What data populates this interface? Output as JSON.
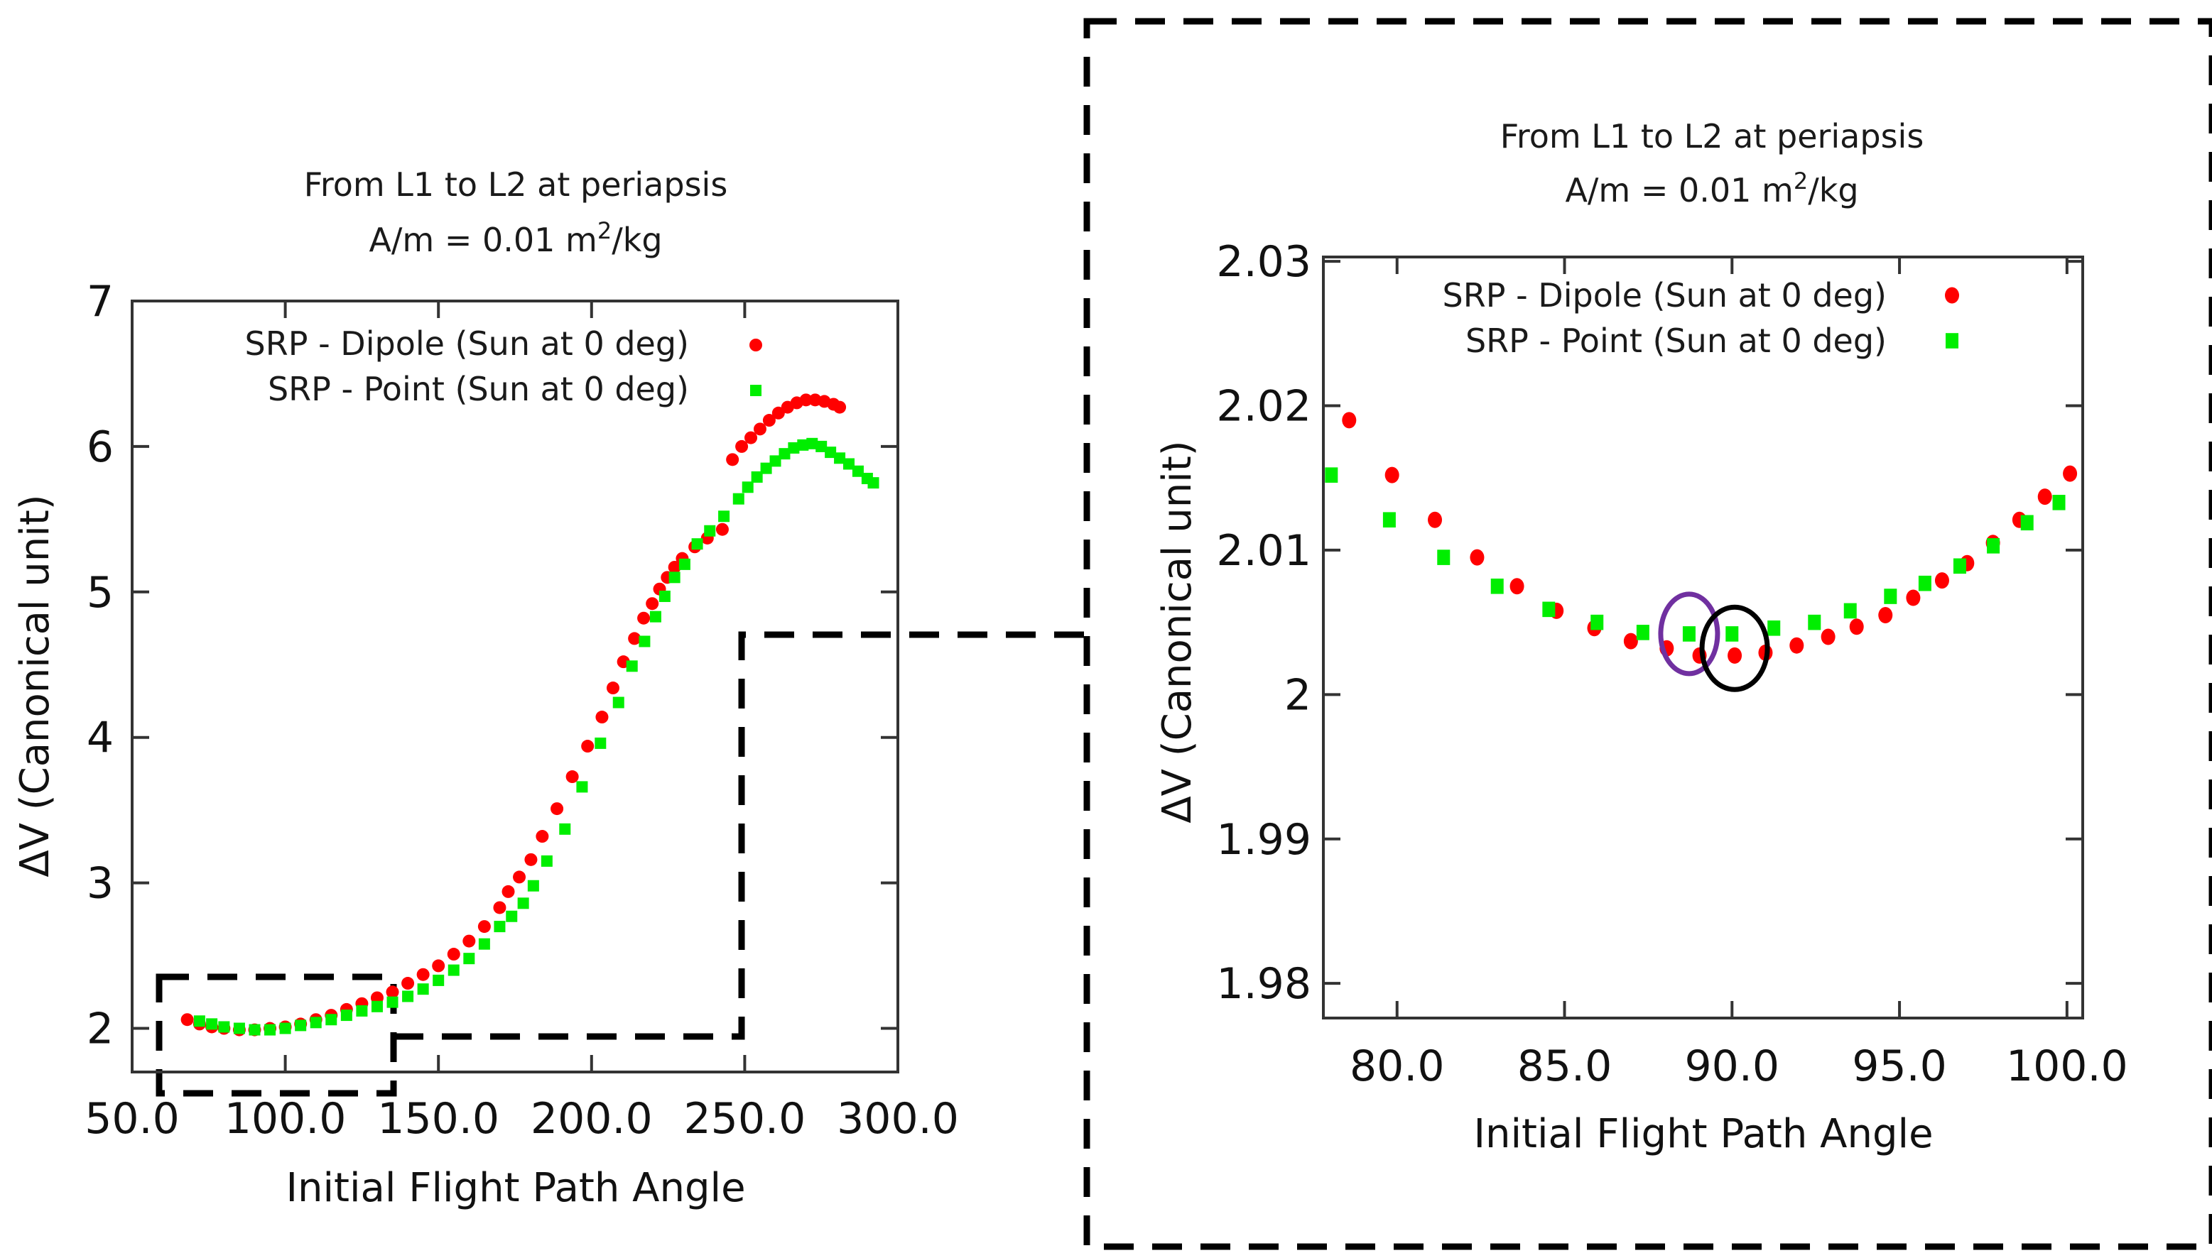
{
  "colors": {
    "dipole": "#ff0000",
    "point": "#00ee00",
    "highlight_purple": "#7030a0",
    "highlight_black": "#000000"
  },
  "chart_data": [
    {
      "type": "scatter",
      "title_line1": "From L1 to L2 at periapsis",
      "title_line2_prefix": "A/m = 0.01 m",
      "title_line2_sup": "2",
      "title_line2_suffix": "/kg",
      "xlabel": "Initial Flight Path Angle",
      "ylabel": "ΔV (Canonical unit)",
      "xlim": [
        50,
        300
      ],
      "ylim": [
        1.7,
        7.0
      ],
      "xticks": [
        50,
        100,
        150,
        200,
        250,
        300
      ],
      "xtick_labels": [
        "50.0",
        "100.0",
        "150.0",
        "200.0",
        "250.0",
        "300.0"
      ],
      "yticks": [
        2,
        3,
        4,
        5,
        6,
        7
      ],
      "ytick_labels": [
        "2",
        "3",
        "4",
        "5",
        "6",
        "7"
      ],
      "legend_position": "top-right",
      "series": [
        {
          "name": "SRP - Dipole (Sun at 0 deg)",
          "marker": "circle",
          "x": [
            68,
            72,
            76,
            80,
            85,
            90,
            95,
            100,
            105,
            110,
            115,
            120,
            125,
            130,
            135,
            140,
            145,
            150,
            155,
            160,
            165,
            170,
            172.8,
            176.4,
            180.2,
            183.9,
            188.7,
            193.7,
            198.7,
            203.4,
            207.0,
            210.4,
            214.0,
            217.0,
            219.8,
            222.2,
            224.7,
            227.1,
            229.6,
            233.7,
            237.8,
            242.7,
            246,
            249,
            252,
            255,
            258,
            261,
            264,
            267,
            270,
            273,
            276,
            279,
            281
          ],
          "y": [
            2.06,
            2.03,
            2.01,
            2.0,
            1.99,
            1.99,
            2.0,
            2.01,
            2.03,
            2.06,
            2.09,
            2.13,
            2.17,
            2.21,
            2.25,
            2.31,
            2.37,
            2.43,
            2.51,
            2.6,
            2.7,
            2.83,
            2.94,
            3.04,
            3.16,
            3.32,
            3.51,
            3.73,
            3.94,
            4.14,
            4.34,
            4.52,
            4.68,
            4.82,
            4.92,
            5.02,
            5.1,
            5.17,
            5.23,
            5.31,
            5.37,
            5.43,
            5.91,
            6.0,
            6.06,
            6.12,
            6.18,
            6.23,
            6.27,
            6.3,
            6.32,
            6.32,
            6.31,
            6.29,
            6.27
          ]
        },
        {
          "name": "SRP - Point (Sun at 0 deg)",
          "marker": "square",
          "x": [
            72,
            76,
            80,
            85,
            90,
            95,
            100,
            105,
            110,
            115,
            120,
            125,
            130,
            135,
            140,
            145,
            150,
            155,
            160,
            165,
            170,
            173.9,
            177.7,
            181.0,
            185.4,
            191.3,
            196.9,
            202.9,
            208.8,
            213.2,
            217.3,
            220.9,
            223.9,
            227.1,
            230.4,
            234.5,
            238.6,
            243.2,
            248,
            251,
            254,
            257,
            260,
            263,
            266,
            269,
            272,
            275,
            278,
            281,
            284,
            287,
            290,
            292
          ],
          "y": [
            2.05,
            2.03,
            2.01,
            2.0,
            1.99,
            1.99,
            2.0,
            2.02,
            2.04,
            2.06,
            2.09,
            2.12,
            2.15,
            2.18,
            2.22,
            2.27,
            2.33,
            2.4,
            2.48,
            2.58,
            2.7,
            2.77,
            2.86,
            2.98,
            3.15,
            3.37,
            3.66,
            3.96,
            4.24,
            4.49,
            4.66,
            4.83,
            4.97,
            5.1,
            5.19,
            5.33,
            5.42,
            5.52,
            5.64,
            5.72,
            5.79,
            5.85,
            5.9,
            5.95,
            5.99,
            6.01,
            6.02,
            6.0,
            5.96,
            5.92,
            5.88,
            5.83,
            5.78,
            5.75
          ]
        }
      ]
    },
    {
      "type": "scatter",
      "title_line1": "From L1 to L2 at periapsis",
      "title_line2_prefix": "A/m = 0.01 m",
      "title_line2_sup": "2",
      "title_line2_suffix": "/kg",
      "xlabel": "Initial Flight Path Angle",
      "ylabel": "ΔV (Canonical unit)",
      "xlim": [
        77.8,
        100.47
      ],
      "ylim": [
        1.9776,
        2.0303
      ],
      "xticks": [
        80,
        85,
        90,
        95,
        100
      ],
      "xtick_labels": [
        "80.0",
        "85.0",
        "90.0",
        "95.0",
        "100.0"
      ],
      "yticks": [
        1.98,
        1.99,
        2.0,
        2.01,
        2.02,
        2.03
      ],
      "ytick_labels": [
        "1.98",
        "1.99",
        "2",
        "2.01",
        "2.02",
        "2.03"
      ],
      "legend_position": "top-right",
      "series": [
        {
          "name": "SRP - Dipole (Sun at 0 deg)",
          "marker": "circle",
          "x": [
            78.57,
            79.85,
            81.13,
            82.39,
            83.58,
            84.76,
            85.89,
            86.98,
            88.05,
            89.03,
            90.08,
            91.0,
            91.93,
            92.87,
            93.72,
            94.58,
            95.41,
            96.27,
            97.02,
            97.79,
            98.58,
            99.34,
            100.09
          ],
          "y": [
            2.019,
            2.0152,
            2.0121,
            2.0095,
            2.0075,
            2.0058,
            2.0046,
            2.0037,
            2.0032,
            2.0027,
            2.0027,
            2.0029,
            2.0034,
            2.004,
            2.0047,
            2.0055,
            2.0067,
            2.0079,
            2.0091,
            2.0105,
            2.0121,
            2.0137,
            2.0153
          ]
        },
        {
          "name": "SRP - Point (Sun at 0 deg)",
          "marker": "square",
          "x": [
            78.04,
            79.77,
            81.39,
            82.99,
            84.53,
            85.97,
            87.34,
            88.72,
            90.0,
            91.25,
            92.46,
            93.53,
            94.73,
            95.76,
            96.8,
            97.8,
            98.81,
            99.76,
            100.7
          ],
          "y": [
            2.0152,
            2.0121,
            2.0095,
            2.0075,
            2.0059,
            2.005,
            2.0043,
            2.0042,
            2.0042,
            2.0046,
            2.005,
            2.0058,
            2.0068,
            2.0077,
            2.0089,
            2.0103,
            2.0119,
            2.0133,
            2.015
          ]
        }
      ],
      "annotations": [
        {
          "shape": "ellipse",
          "color": "#7030a0",
          "x": 88.72,
          "y": 2.0042,
          "note": ""
        },
        {
          "shape": "ellipse",
          "color": "#000000",
          "x": 90.08,
          "y": 2.0032,
          "note": ""
        }
      ]
    }
  ]
}
